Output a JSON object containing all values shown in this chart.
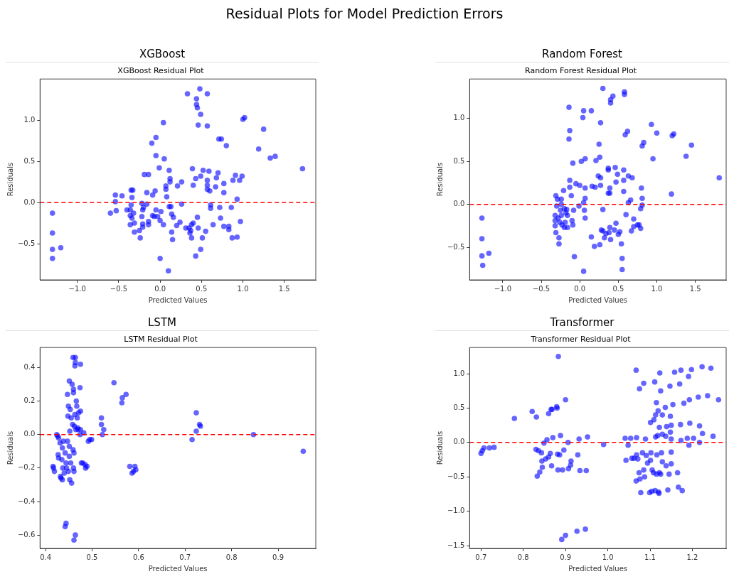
{
  "chart_data": [
    {
      "type": "other",
      "title": "Residual Plots for Model Prediction Errors"
    },
    {
      "type": "scatter",
      "title": "XGBoost",
      "subtitle": "XGBoost Residual Plot",
      "xlabel": "Predicted Values",
      "ylabel": "Residuals",
      "color": "#0000ff",
      "marker": "circle",
      "grid": false,
      "legend": false,
      "x": [
        -1.3,
        -1.3,
        -1.3,
        -1.3,
        -1.2,
        -0.6,
        -0.54,
        -0.54,
        -0.53,
        -0.46,
        -0.4,
        -0.36,
        -0.35,
        -0.33,
        -0.34,
        -0.35,
        -0.36,
        -0.36,
        -0.34,
        -0.32,
        -0.31,
        -0.31,
        -0.25,
        -0.24,
        -0.22,
        -0.21,
        -0.2,
        -0.22,
        -0.21,
        -0.21,
        -0.19,
        -0.14,
        -0.16,
        -0.16,
        -0.14,
        -0.14,
        -0.1,
        -0.09,
        -0.09,
        -0.07,
        -0.06,
        -0.05,
        -0.05,
        -0.05,
        -0.03,
        -0.01,
        0.0,
        0.01,
        0.0,
        0.04,
        0.04,
        0.05,
        0.07,
        0.07,
        0.08,
        0.1,
        0.11,
        0.12,
        0.12,
        0.11,
        0.13,
        0.14,
        0.14,
        0.15,
        0.16,
        0.21,
        0.2,
        0.24,
        0.26,
        0.26,
        0.31,
        0.33,
        0.35,
        0.36,
        0.37,
        0.38,
        0.38,
        0.4,
        0.4,
        0.39,
        0.43,
        0.43,
        0.44,
        0.44,
        0.45,
        0.46,
        0.45,
        0.46,
        0.48,
        0.49,
        0.49,
        0.49,
        0.52,
        0.51,
        0.55,
        0.57,
        0.57,
        0.57,
        0.57,
        0.57,
        0.59,
        0.6,
        0.61,
        0.61,
        0.64,
        0.67,
        0.68,
        0.7,
        0.71,
        0.74,
        0.72,
        0.73,
        0.77,
        0.77,
        0.77,
        0.8,
        0.83,
        0.83,
        0.86,
        0.87,
        0.88,
        0.91,
        0.93,
        0.93,
        0.96,
        0.97,
        0.99,
        1.0,
        1.02,
        1.19,
        1.25,
        1.33,
        1.39,
        1.72
      ],
      "values": [
        -0.13,
        -0.37,
        -0.57,
        -0.68,
        -0.55,
        -0.13,
        0.09,
        0.01,
        -0.1,
        0.08,
        -0.09,
        -0.09,
        0.15,
        0.15,
        0.06,
        -0.03,
        -0.16,
        -0.27,
        -0.19,
        -0.13,
        -0.25,
        -0.36,
        -0.34,
        -0.43,
        -0.01,
        -0.09,
        -0.06,
        -0.17,
        -0.26,
        -0.3,
        0.34,
        0.34,
        0.12,
        -0.02,
        -0.23,
        -0.27,
        0.72,
        0.09,
        -0.16,
        -0.17,
        0.14,
        0.79,
        0.57,
        -0.09,
        -0.17,
        0.42,
        -0.22,
        -0.11,
        -0.68,
        -0.27,
        0.97,
        0.53,
        0.2,
        0.16,
        0.07,
        -0.83,
        0.39,
        0.29,
        0.25,
        -0.05,
        -0.05,
        -0.14,
        -0.36,
        -0.45,
        -0.18,
        0.2,
        -0.28,
        -0.24,
        0.25,
        -0.02,
        -0.31,
        1.32,
        -0.31,
        -0.37,
        -0.34,
        -0.43,
        -0.27,
        -0.25,
        0.21,
        0.41,
        0.29,
        -0.65,
        1.26,
        1.19,
        1.15,
        0.94,
        -0.18,
        -0.31,
        1.38,
        1.07,
        0.32,
        -0.57,
        0.39,
        -0.43,
        -0.35,
        1.32,
        0.93,
        0.27,
        0.21,
        0.16,
        0.38,
        0.14,
        -0.03,
        -0.07,
        -0.27,
        0.19,
        0.3,
        0.36,
        0.77,
        0.77,
        -0.06,
        -0.19,
        0.23,
        0.12,
        -0.29,
        0.69,
        -0.29,
        -0.33,
        -0.06,
        -0.43,
        0.27,
        0.33,
        -0.42,
        0.04,
        0.27,
        -0.23,
        0.32,
        1.01,
        1.03,
        0.65,
        0.89,
        0.54,
        0.56,
        0.41
      ],
      "xlim": [
        -1.45,
        1.88
      ],
      "ylim": [
        -0.94,
        1.5
      ],
      "xticks": [
        {
          "value": -1,
          "label": "−1.0"
        },
        {
          "value": -0.5,
          "label": "−0.5"
        },
        {
          "value": 0,
          "label": "0.0"
        },
        0.5,
        {
          "value": 1,
          "label": "1.0"
        },
        1.5
      ],
      "yticks": [
        {
          "value": -0.5,
          "label": "−0.5"
        },
        {
          "value": 0,
          "label": "0.0"
        },
        0.5,
        {
          "value": 1,
          "label": "1.0"
        }
      ],
      "ref_lines": [
        {
          "axis": "y",
          "value": 0,
          "color": "#ff0000",
          "line_style": "dashed"
        }
      ]
    },
    {
      "type": "scatter",
      "title": "Random Forest",
      "subtitle": "Random Forest Residual Plot",
      "xlabel": "Predicted Values",
      "ylabel": "Residuals",
      "color": "#0000ff",
      "marker": "circle",
      "grid": false,
      "legend": false,
      "x": [
        -1.27,
        -1.27,
        -1.27,
        -1.26,
        -1.18,
        -0.31,
        -0.32,
        -0.32,
        -0.32,
        -0.31,
        -0.3,
        -0.29,
        -0.28,
        -0.27,
        -0.27,
        -0.26,
        -0.25,
        -0.24,
        -0.24,
        -0.24,
        -0.23,
        -0.21,
        -0.2,
        -0.2,
        -0.19,
        -0.18,
        -0.17,
        -0.16,
        -0.16,
        -0.14,
        -0.14,
        -0.13,
        -0.13,
        -0.13,
        -0.11,
        -0.1,
        -0.09,
        -0.09,
        -0.08,
        -0.07,
        -0.05,
        -0.01,
        0.0,
        0.02,
        0.04,
        0.05,
        0.05,
        0.06,
        0.07,
        0.07,
        0.07,
        0.07,
        0.05,
        0.15,
        0.15,
        0.16,
        0.19,
        0.2,
        0.21,
        0.24,
        0.25,
        0.26,
        0.26,
        0.27,
        0.27,
        0.27,
        0.28,
        0.3,
        0.3,
        0.3,
        0.32,
        0.34,
        0.37,
        0.37,
        0.37,
        0.39,
        0.39,
        0.38,
        0.39,
        0.4,
        0.4,
        0.4,
        0.43,
        0.45,
        0.46,
        0.47,
        0.47,
        0.49,
        0.5,
        0.52,
        0.54,
        0.55,
        0.55,
        0.57,
        0.57,
        0.57,
        0.58,
        0.58,
        0.59,
        0.6,
        0.62,
        0.63,
        0.63,
        0.66,
        0.67,
        0.68,
        0.7,
        0.7,
        0.75,
        0.77,
        0.79,
        0.79,
        0.8,
        0.81,
        0.81,
        0.81,
        0.83,
        0.93,
        0.95,
        1.0,
        1.19,
        1.2,
        1.22,
        1.38,
        1.45,
        1.81
      ],
      "values": [
        -0.16,
        -0.4,
        -0.6,
        -0.71,
        -0.57,
        0.1,
        -0.13,
        -0.19,
        -0.25,
        -0.33,
        -0.02,
        0.06,
        -0.16,
        -0.39,
        -0.46,
        -0.21,
        -0.07,
        0.06,
        0.0,
        -0.13,
        -0.24,
        0.16,
        -0.05,
        -0.27,
        -0.21,
        -0.1,
        -0.06,
        -0.13,
        -0.27,
        1.13,
        0.76,
        0.86,
        0.28,
        0.2,
        0.1,
        -0.19,
        -0.24,
        0.48,
        -0.07,
        -0.61,
        0.24,
        -0.02,
        0.22,
        0.5,
        1.01,
        1.09,
        0.02,
        -0.07,
        0.07,
        -0.16,
        0.19,
        0.53,
        -0.78,
        1.09,
        -0.38,
        0.21,
        -0.49,
        0.2,
        0.51,
        0.33,
        0.7,
        0.55,
        -0.47,
        0.31,
        0.22,
        0.95,
        -0.3,
        1.35,
        -0.06,
        -0.31,
        -0.39,
        -0.34,
        0.42,
        0.4,
        0.13,
        0.19,
        0.13,
        -0.33,
        -0.27,
        -0.41,
        1.22,
        1.18,
        1.26,
        -0.3,
        0.43,
        -0.22,
        0.26,
        0.35,
        -0.35,
        -0.32,
        -0.46,
        -0.63,
        -0.76,
        0.4,
        0.28,
        0.15,
        1.31,
        1.28,
        0.81,
        -0.12,
        0.85,
        0.33,
        0.02,
        0.05,
        -0.31,
        0.31,
        -0.17,
        -0.26,
        -0.24,
        -0.24,
        -0.28,
        -0.05,
        0.19,
        0.07,
        -0.01,
        0.68,
        0.72,
        0.93,
        0.53,
        0.83,
        0.12,
        0.8,
        0.82,
        0.56,
        0.69,
        0.31
      ],
      "xlim": [
        -1.43,
        1.9
      ],
      "ylim": [
        -0.88,
        1.46
      ],
      "xticks": [
        {
          "value": -1,
          "label": "−1.0"
        },
        {
          "value": -0.5,
          "label": "−0.5"
        },
        {
          "value": 0,
          "label": "0.0"
        },
        0.5,
        {
          "value": 1,
          "label": "1.0"
        },
        1.5
      ],
      "yticks": [
        {
          "value": -0.5,
          "label": "−0.5"
        },
        {
          "value": 0,
          "label": "0.0"
        },
        0.5,
        {
          "value": 1,
          "label": "1.0"
        }
      ],
      "ref_lines": [
        {
          "axis": "y",
          "value": 0,
          "color": "#ff0000",
          "line_style": "dashed"
        }
      ]
    },
    {
      "type": "scatter",
      "title": "LSTM",
      "subtitle": "LSTM Residual Plot",
      "xlabel": "Predicted Values",
      "ylabel": "Residuals",
      "color": "#0000ff",
      "marker": "circle",
      "grid": false,
      "legend": false,
      "x": [
        0.416,
        0.417,
        0.419,
        0.424,
        0.426,
        0.428,
        0.427,
        0.428,
        0.431,
        0.432,
        0.433,
        0.436,
        0.435,
        0.436,
        0.437,
        0.438,
        0.44,
        0.442,
        0.444,
        0.442,
        0.444,
        0.445,
        0.447,
        0.447,
        0.448,
        0.449,
        0.449,
        0.451,
        0.451,
        0.451,
        0.452,
        0.452,
        0.453,
        0.454,
        0.455,
        0.456,
        0.457,
        0.458,
        0.459,
        0.459,
        0.46,
        0.46,
        0.46,
        0.461,
        0.461,
        0.461,
        0.462,
        0.463,
        0.464,
        0.464,
        0.463,
        0.464,
        0.465,
        0.466,
        0.467,
        0.468,
        0.469,
        0.47,
        0.471,
        0.474,
        0.475,
        0.475,
        0.475,
        0.474,
        0.477,
        0.48,
        0.482,
        0.485,
        0.486,
        0.489,
        0.492,
        0.495,
        0.499,
        0.52,
        0.52,
        0.522,
        0.525,
        0.547,
        0.564,
        0.565,
        0.573,
        0.581,
        0.586,
        0.589,
        0.592,
        0.594,
        0.715,
        0.724,
        0.724,
        0.731,
        0.733,
        0.847,
        0.954
      ],
      "values": [
        -0.19,
        -0.2,
        -0.22,
        0.0,
        -0.01,
        -0.02,
        -0.12,
        -0.14,
        -0.05,
        -0.25,
        -0.26,
        -0.27,
        -0.15,
        -0.08,
        -0.2,
        -0.04,
        -0.23,
        -0.55,
        -0.53,
        -0.11,
        -0.17,
        -0.2,
        0.24,
        -0.04,
        0.11,
        0.17,
        -0.22,
        0.32,
        -0.07,
        -0.13,
        -0.27,
        0.02,
        0.15,
        -0.17,
        0.1,
        -0.29,
        0.3,
        0.06,
        0.46,
        -0.09,
        0.27,
        0.25,
        -0.2,
        -0.22,
        -0.63,
        -0.11,
        0.05,
        0.12,
        0.46,
        -0.6,
        0.41,
        0.43,
        0.03,
        0.2,
        0.17,
        0.1,
        0.04,
        0.03,
        0.13,
        0.28,
        0.42,
        0.14,
        0.03,
        0.0,
        -0.17,
        -0.17,
        0.01,
        -0.18,
        -0.2,
        -0.19,
        -0.04,
        -0.03,
        -0.03,
        0.1,
        0.06,
        0.0,
        0.03,
        0.31,
        0.19,
        0.22,
        0.24,
        -0.19,
        -0.23,
        -0.22,
        -0.19,
        -0.21,
        -0.03,
        0.02,
        0.13,
        0.06,
        0.05,
        0.0,
        -0.1
      ],
      "xlim": [
        0.388,
        0.981
      ],
      "ylim": [
        -0.68,
        0.52
      ],
      "xticks": [
        0.4,
        0.5,
        0.6,
        0.7,
        0.8,
        0.9
      ],
      "yticks": [
        {
          "value": -0.6,
          "label": "−0.6"
        },
        {
          "value": -0.4,
          "label": "−0.4"
        },
        {
          "value": -0.2,
          "label": "−0.2"
        },
        {
          "value": 0,
          "label": "0.0"
        },
        0.2,
        0.4
      ],
      "ref_lines": [
        {
          "axis": "y",
          "value": 0,
          "color": "#ff0000",
          "line_style": "dashed"
        }
      ]
    },
    {
      "type": "scatter",
      "title": "Transformer",
      "subtitle": "Transformer Residual Plot",
      "xlabel": "Predicted Values",
      "ylabel": "Residuals",
      "color": "#0000ff",
      "marker": "circle",
      "grid": false,
      "legend": false,
      "x": [
        0.7,
        0.703,
        0.707,
        0.72,
        0.731,
        0.779,
        0.821,
        0.831,
        0.83,
        0.836,
        0.843,
        0.833,
        0.839,
        0.844,
        0.845,
        0.849,
        0.853,
        0.856,
        0.86,
        0.86,
        0.864,
        0.866,
        0.868,
        0.867,
        0.87,
        0.879,
        0.88,
        0.881,
        0.882,
        0.883,
        0.886,
        0.888,
        0.891,
        0.893,
        0.896,
        0.9,
        0.9,
        0.906,
        0.907,
        0.912,
        0.913,
        0.927,
        0.929,
        0.932,
        0.934,
        0.947,
        0.949,
        0.952,
        0.99,
        1.041,
        1.043,
        1.048,
        1.054,
        1.057,
        1.062,
        1.067,
        1.068,
        1.067,
        1.068,
        1.071,
        1.074,
        1.075,
        1.076,
        1.078,
        1.082,
        1.085,
        1.085,
        1.087,
        1.089,
        1.091,
        1.094,
        1.099,
        1.101,
        1.101,
        1.102,
        1.104,
        1.105,
        1.109,
        1.111,
        1.108,
        1.113,
        1.113,
        1.115,
        1.112,
        1.115,
        1.116,
        1.118,
        1.119,
        1.12,
        1.121,
        1.122,
        1.122,
        1.123,
        1.125,
        1.125,
        1.127,
        1.129,
        1.129,
        1.129,
        1.136,
        1.137,
        1.138,
        1.139,
        1.142,
        1.145,
        1.147,
        1.148,
        1.148,
        1.15,
        1.15,
        1.15,
        1.15,
        1.154,
        1.158,
        1.165,
        1.167,
        1.17,
        1.172,
        1.173,
        1.173,
        1.176,
        1.18,
        1.188,
        1.191,
        1.193,
        1.192,
        1.194,
        1.198,
        1.203,
        1.214,
        1.217,
        1.217,
        1.223,
        1.224,
        1.236,
        1.244,
        1.249,
        1.262
      ],
      "values": [
        -0.16,
        -0.12,
        -0.08,
        -0.08,
        -0.07,
        0.35,
        0.45,
        0.37,
        -0.1,
        -0.12,
        -0.15,
        -0.49,
        -0.43,
        -0.27,
        -0.36,
        -0.01,
        -0.24,
        0.04,
        0.42,
        -0.21,
        -0.16,
        0.48,
        0.48,
        -0.34,
        0.07,
        0.52,
        0.5,
        -0.17,
        -0.4,
        1.25,
        -0.18,
        0.1,
        -1.41,
        -0.4,
        -0.11,
        0.62,
        -1.35,
        0.0,
        -0.38,
        -0.33,
        -0.27,
        -1.29,
        -0.18,
        0.05,
        -0.41,
        -1.26,
        -0.41,
        0.08,
        -0.03,
        0.06,
        -0.26,
        -0.04,
        0.06,
        -0.23,
        -0.23,
        -0.56,
        0.07,
        1.05,
        -0.18,
        -0.24,
        -0.44,
        0.78,
        -0.53,
        -0.73,
        -0.15,
        0.86,
        -0.4,
        -0.5,
        0.05,
        -0.19,
        -0.3,
        -0.73,
        0.29,
        -0.26,
        -0.15,
        -0.71,
        -0.4,
        0.33,
        0.88,
        -0.44,
        0.08,
        0.4,
        0.58,
        -0.7,
        -0.46,
        -0.18,
        0.1,
        0.46,
        -0.72,
        -0.74,
        0.22,
        -0.44,
        1.01,
        0.75,
        -0.46,
        -0.15,
        0.4,
        0.12,
        -0.28,
        0.51,
        0.09,
        -0.34,
        0.23,
        -0.69,
        -0.46,
        0.82,
        0.38,
        0.15,
        0.25,
        0.05,
        -0.14,
        -0.31,
        0.55,
        1.02,
        -0.44,
        -0.65,
        0.85,
        0.26,
        0.03,
        1.05,
        -0.7,
        0.57,
        0.06,
        0.96,
        0.62,
        -0.04,
        0.28,
        1.06,
        0.06,
        0.66,
        0.24,
        0.0,
        1.1,
        0.13,
        0.68,
        1.08,
        0.09,
        0.62
      ],
      "xlim": [
        0.673,
        1.28
      ],
      "ylim": [
        -1.54,
        1.38
      ],
      "xticks": [
        0.7,
        0.8,
        0.9,
        {
          "value": 1,
          "label": "1.0"
        },
        1.1,
        1.2
      ],
      "yticks": [
        {
          "value": -1.5,
          "label": "−1.5"
        },
        {
          "value": -1,
          "label": "−1.0"
        },
        {
          "value": -0.5,
          "label": "−0.5"
        },
        {
          "value": 0,
          "label": "0.0"
        },
        0.5,
        {
          "value": 1,
          "label": "1.0"
        }
      ],
      "ref_lines": [
        {
          "axis": "y",
          "value": 0,
          "color": "#ff0000",
          "line_style": "dashed"
        }
      ]
    }
  ]
}
